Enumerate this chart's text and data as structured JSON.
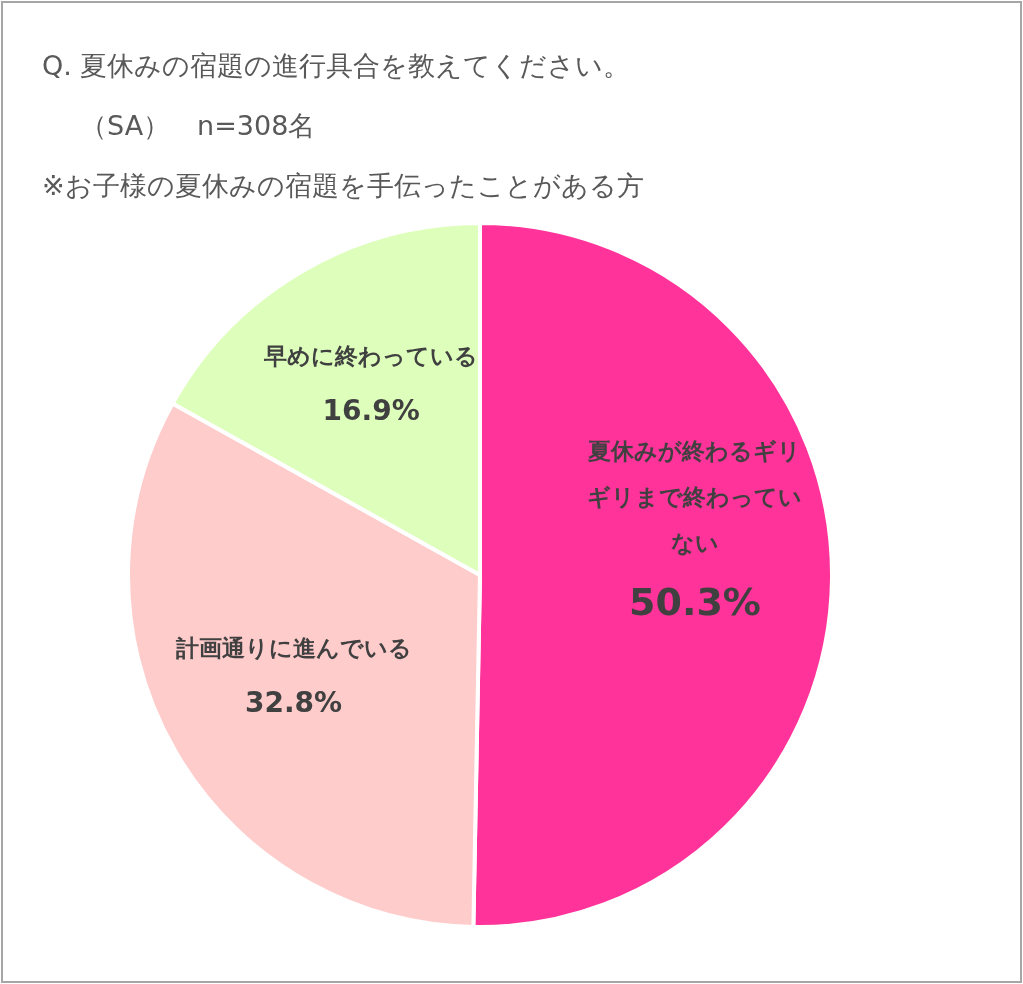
{
  "chart_data": {
    "type": "pie",
    "title": "Q. 夏休みの宿題の進行具合を教えてください。",
    "subtitle": "（SA）　n=308名",
    "annotations": [
      "※お子様の夏休みの宿題を手伝ったことがある方"
    ],
    "categories": [
      "夏休みが終わるギリギリまで終わっていない",
      "計画通りに進んでいる",
      "早めに終わっている"
    ],
    "values": [
      50.3,
      32.8,
      16.9
    ],
    "colors": [
      "#ff3399",
      "#ffcccc",
      "#ddffbb"
    ],
    "value_labels": [
      "50.3%",
      "32.8%",
      "16.9%"
    ]
  }
}
